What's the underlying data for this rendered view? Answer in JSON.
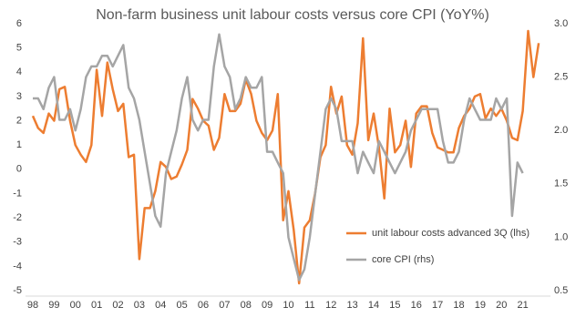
{
  "chart_data": {
    "type": "line",
    "title": "Non-farm business unit labour costs versus core CPI (YoY%)",
    "legend": "lower right",
    "x": [
      1998,
      1998.25,
      1998.5,
      1998.75,
      1999,
      1999.25,
      1999.5,
      1999.75,
      2000,
      2000.25,
      2000.5,
      2000.75,
      2001,
      2001.25,
      2001.5,
      2001.75,
      2002,
      2002.25,
      2002.5,
      2002.75,
      2003,
      2003.25,
      2003.5,
      2003.75,
      2004,
      2004.25,
      2004.5,
      2004.75,
      2005,
      2005.25,
      2005.5,
      2005.75,
      2006,
      2006.25,
      2006.5,
      2006.75,
      2007,
      2007.25,
      2007.5,
      2007.75,
      2008,
      2008.25,
      2008.5,
      2008.75,
      2009,
      2009.25,
      2009.5,
      2009.75,
      2010,
      2010.25,
      2010.5,
      2010.75,
      2011,
      2011.25,
      2011.5,
      2011.75,
      2012,
      2012.25,
      2012.5,
      2012.75,
      2013,
      2013.25,
      2013.5,
      2013.75,
      2014,
      2014.25,
      2014.5,
      2014.75,
      2015,
      2015.25,
      2015.5,
      2015.75,
      2016,
      2016.25,
      2016.5,
      2016.75,
      2017,
      2017.25,
      2017.5,
      2017.75,
      2018,
      2018.25,
      2018.5,
      2018.75,
      2019,
      2019.25,
      2019.5,
      2019.75,
      2020,
      2020.25,
      2020.5,
      2020.75,
      2021,
      2021.25,
      2021.5,
      2021.75
    ],
    "xlim": [
      1998,
      2022.3
    ],
    "xticks": [
      {
        "value": 1998,
        "label": "98"
      },
      {
        "value": 1999,
        "label": "99"
      },
      {
        "value": 2000,
        "label": "00"
      },
      {
        "value": 2001,
        "label": "01"
      },
      {
        "value": 2002,
        "label": "02"
      },
      {
        "value": 2003,
        "label": "03"
      },
      {
        "value": 2004,
        "label": "04"
      },
      {
        "value": 2005,
        "label": "05"
      },
      {
        "value": 2006,
        "label": "06"
      },
      {
        "value": 2007,
        "label": "07"
      },
      {
        "value": 2008,
        "label": "08"
      },
      {
        "value": 2009,
        "label": "09"
      },
      {
        "value": 2010,
        "label": "10"
      },
      {
        "value": 2011,
        "label": "11"
      },
      {
        "value": 2012,
        "label": "12"
      },
      {
        "value": 2013,
        "label": "13"
      },
      {
        "value": 2014,
        "label": "14"
      },
      {
        "value": 2015,
        "label": "15"
      },
      {
        "value": 2016,
        "label": "16"
      },
      {
        "value": 2017,
        "label": "17"
      },
      {
        "value": 2018,
        "label": "18"
      },
      {
        "value": 2019,
        "label": "19"
      },
      {
        "value": 2020,
        "label": "20"
      },
      {
        "value": 2021,
        "label": "21"
      }
    ],
    "ylim": [
      -5,
      6
    ],
    "yticks": [
      -5,
      -4,
      -3,
      -2,
      -1,
      0,
      1,
      2,
      3,
      4,
      5,
      6
    ],
    "y2lim": [
      0.5,
      3.0
    ],
    "y2ticks": [
      0.5,
      {
        "value": 1,
        "label": "1.0"
      },
      1.5,
      {
        "value": 2,
        "label": "2.0"
      },
      2.5,
      {
        "value": 3,
        "label": "3.0"
      }
    ],
    "series": [
      {
        "name": "unit labour costs advanced 3Q (lhs)",
        "color": "#ed7d31",
        "axis": "y",
        "values": [
          2.2,
          1.7,
          1.5,
          2.3,
          2.0,
          3.3,
          3.4,
          2.0,
          1.0,
          0.6,
          0.3,
          1.0,
          4.1,
          2.2,
          4.4,
          3.3,
          2.4,
          2.7,
          0.5,
          0.6,
          -3.7,
          -1.6,
          -1.6,
          -0.9,
          0.3,
          0.1,
          -0.4,
          -0.3,
          0.2,
          0.8,
          2.9,
          2.5,
          2.0,
          1.8,
          0.8,
          1.3,
          3.1,
          2.4,
          2.4,
          2.7,
          3.7,
          3.1,
          2.0,
          1.5,
          1.2,
          1.6,
          3.1,
          -2.1,
          -0.9,
          -2.5,
          -4.7,
          -2.4,
          -2.1,
          -1.0,
          0.5,
          1.0,
          3.4,
          2.3,
          3.0,
          1.0,
          0.6,
          1.9,
          5.4,
          1.2,
          2.3,
          0.9,
          -1.2,
          2.5,
          0.7,
          1.0,
          2.0,
          0.1,
          2.3,
          2.6,
          2.6,
          1.5,
          0.9,
          0.8,
          0.7,
          0.7,
          1.7,
          2.2,
          2.5,
          3.0,
          3.1,
          2.1,
          2.5,
          2.2,
          2.5,
          2.0,
          1.3,
          1.2,
          2.4,
          5.7,
          3.8,
          5.2
        ]
      },
      {
        "name": "core CPI (rhs)",
        "color": "#a5a5a5",
        "axis": "y2",
        "values": [
          2.3,
          2.3,
          2.2,
          2.4,
          2.5,
          2.1,
          2.1,
          2.2,
          2.0,
          2.2,
          2.5,
          2.6,
          2.6,
          2.7,
          2.7,
          2.6,
          2.7,
          2.8,
          2.4,
          2.3,
          2.1,
          1.8,
          1.5,
          1.2,
          1.1,
          1.6,
          1.8,
          2.0,
          2.3,
          2.5,
          2.1,
          2.0,
          2.1,
          2.1,
          2.6,
          2.9,
          2.6,
          2.5,
          2.2,
          2.3,
          2.5,
          2.4,
          2.4,
          2.5,
          1.8,
          1.8,
          1.7,
          1.6,
          1.0,
          0.8,
          0.6,
          0.7,
          1.0,
          1.4,
          1.8,
          2.2,
          2.3,
          2.2,
          1.9,
          1.9,
          1.9,
          1.6,
          1.8,
          1.7,
          1.6,
          1.9,
          1.8,
          1.7,
          1.6,
          1.7,
          1.8,
          2.0,
          2.1,
          2.2,
          2.2,
          2.2,
          2.2,
          1.9,
          1.7,
          1.7,
          1.8,
          2.1,
          2.3,
          2.2,
          2.1,
          2.1,
          2.1,
          2.3,
          2.2,
          2.3,
          1.2,
          1.7,
          1.6,
          null,
          null,
          null
        ]
      }
    ]
  }
}
